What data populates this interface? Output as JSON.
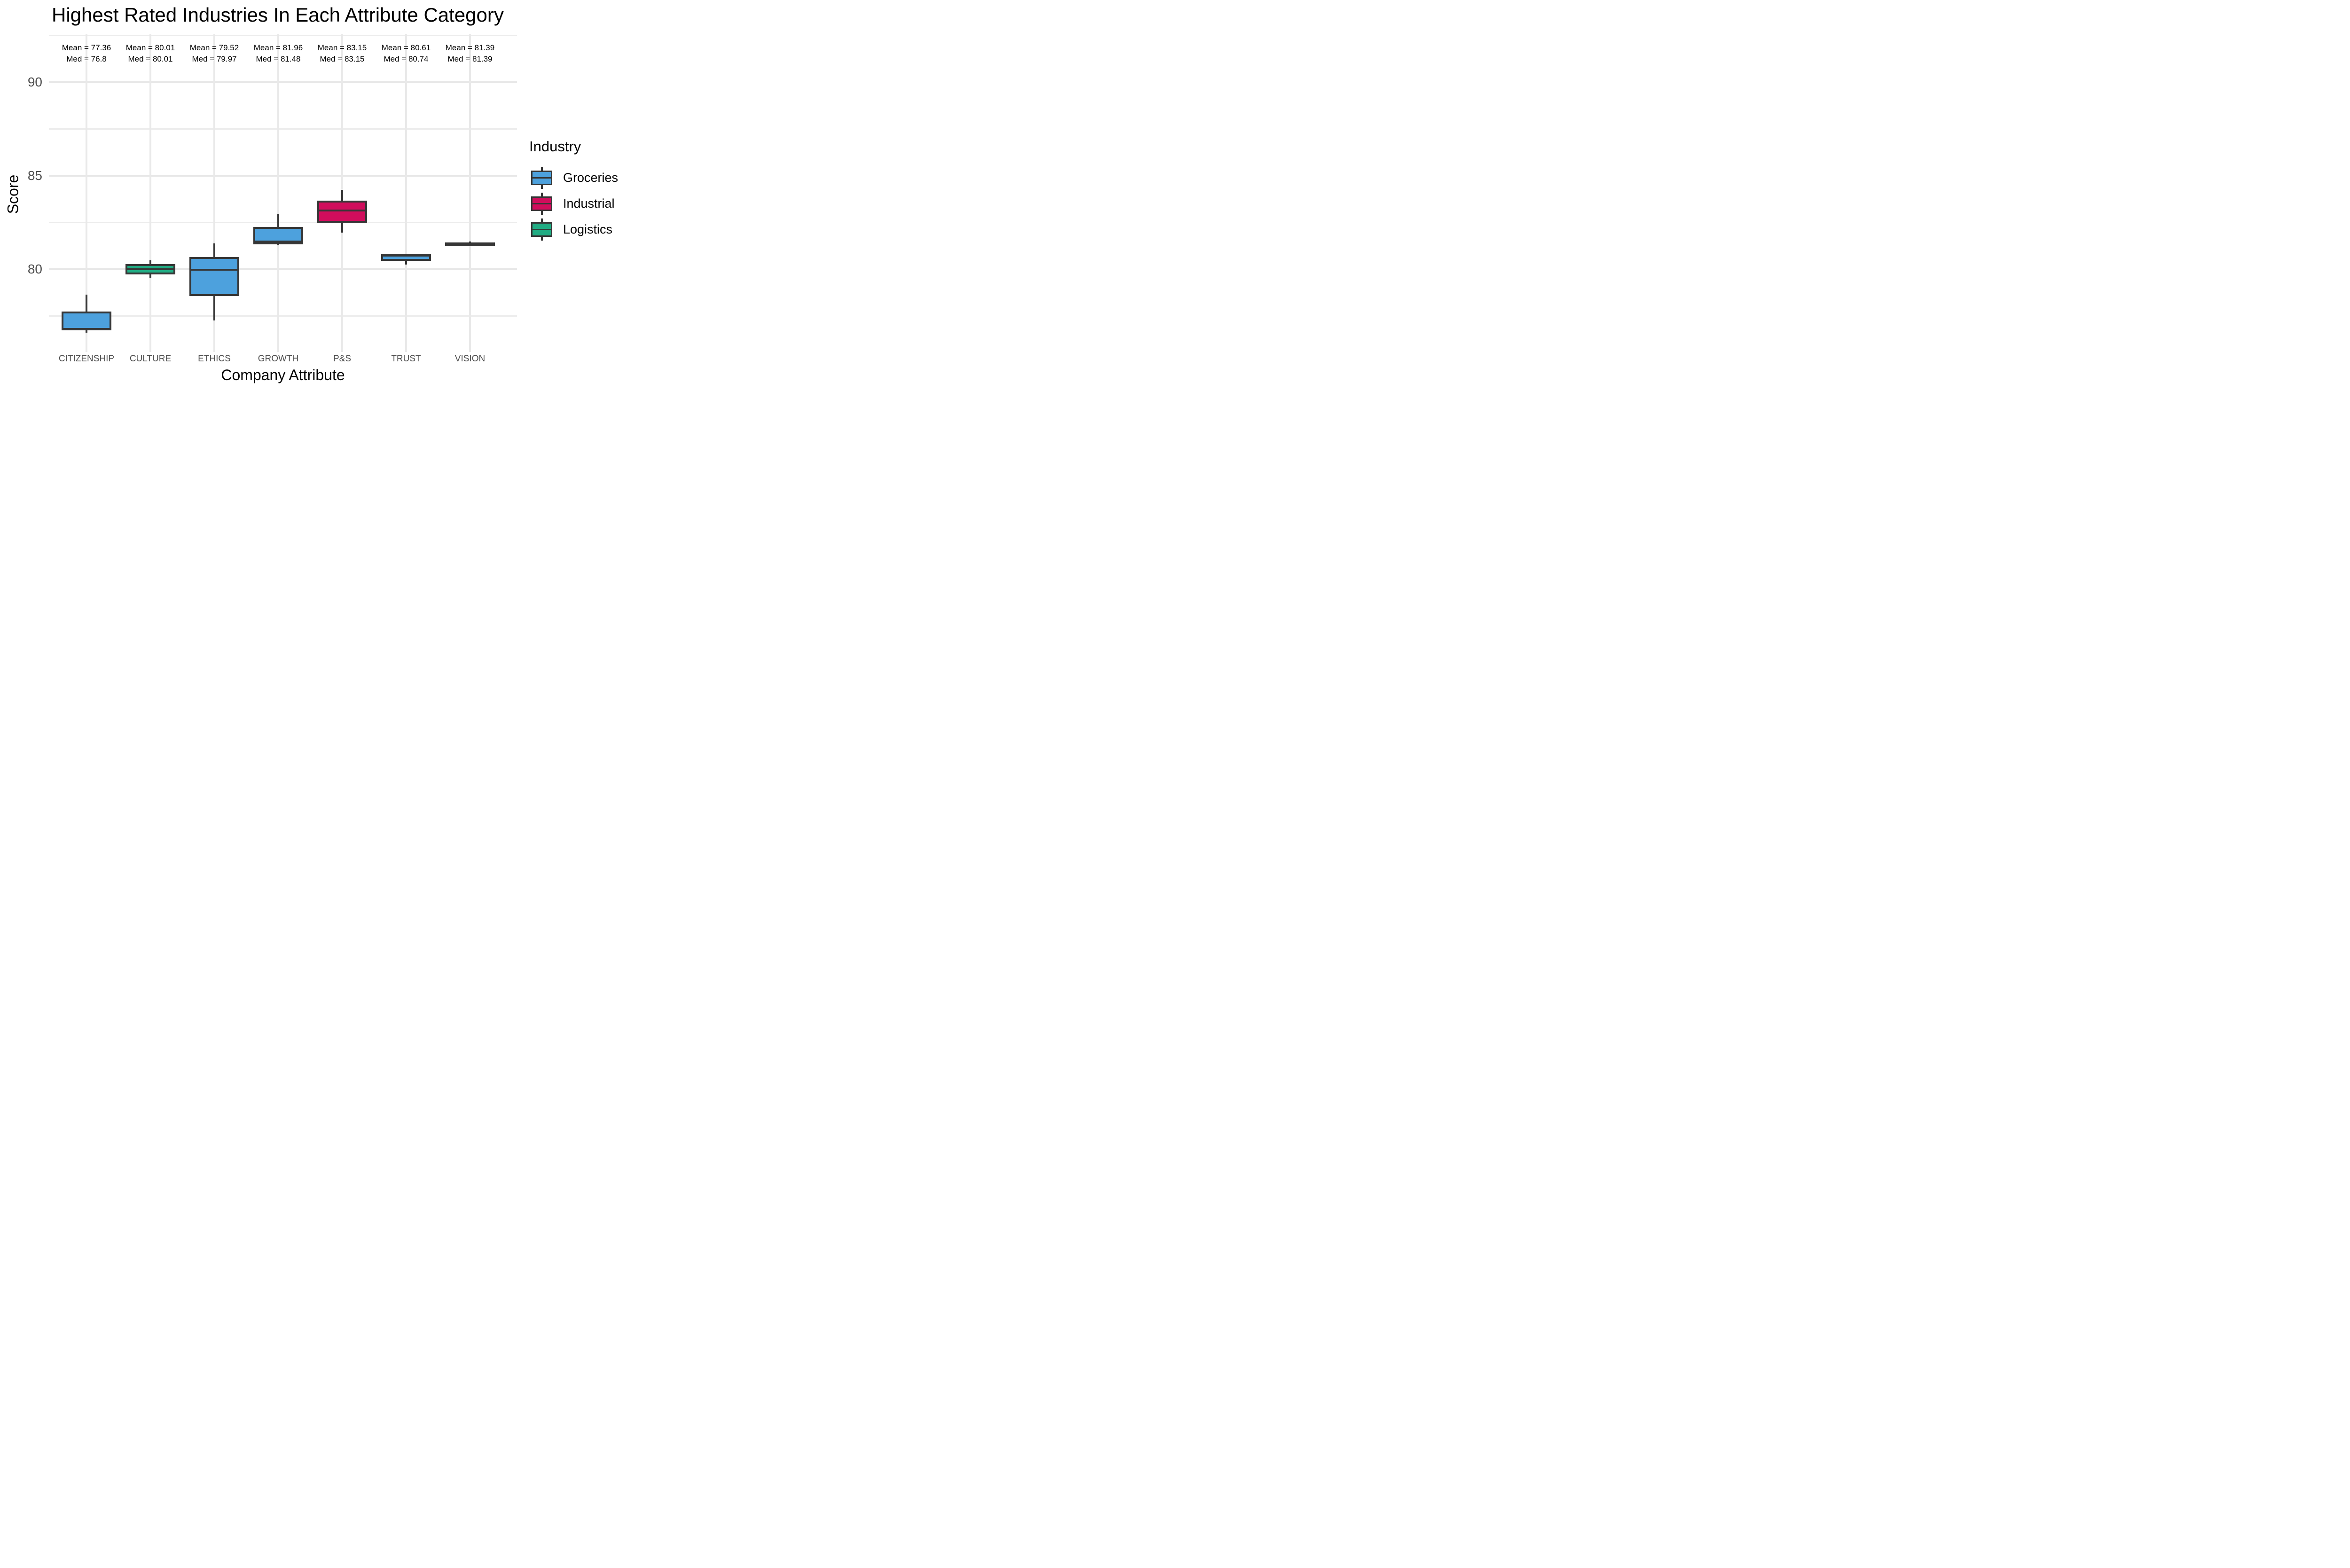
{
  "title": "Highest Rated Industries In Each Attribute Category",
  "axes": {
    "x_title": "Company Attribute",
    "y_title": "Score",
    "y_tick_labels": [
      "90",
      "85",
      "80"
    ]
  },
  "legend": {
    "title": "Industry",
    "entries": [
      {
        "label": "Groceries",
        "color": "#4da1dd"
      },
      {
        "label": "Industrial",
        "color": "#d00d5c"
      },
      {
        "label": "Logistics",
        "color": "#21ac83"
      }
    ]
  },
  "chart_data": {
    "type": "boxplot",
    "title": "Highest Rated Industries In Each Attribute Category",
    "xlabel": "Company Attribute",
    "ylabel": "Score",
    "ylim": [
      75.6,
      92.7
    ],
    "y_major_ticks": [
      80,
      85,
      90
    ],
    "y_minor_gridlines": [
      77.5,
      82.5,
      87.5,
      92.5
    ],
    "grid": "on",
    "legend_position": "right",
    "categories": [
      "CITIZENSHIP",
      "CULTURE",
      "ETHICS",
      "GROWTH",
      "P&S",
      "TRUST",
      "VISION"
    ],
    "series": [
      {
        "category": "CITIZENSHIP",
        "industry": "Groceries",
        "color": "#4da1dd",
        "min": 76.62,
        "q1": 76.74,
        "median": 76.8,
        "q3": 77.74,
        "max": 78.64,
        "mean": 77.36,
        "mean_label": "Mean = 77.36",
        "med_label": "Med = 76.8"
      },
      {
        "category": "CULTURE",
        "industry": "Logistics",
        "color": "#21ac83",
        "min": 79.55,
        "q1": 79.73,
        "median": 80.01,
        "q3": 80.28,
        "max": 80.47,
        "mean": 80.01,
        "mean_label": "Mean = 80.01",
        "med_label": "Med = 80.01"
      },
      {
        "category": "ETHICS",
        "industry": "Groceries",
        "color": "#4da1dd",
        "min": 77.25,
        "q1": 78.57,
        "median": 79.97,
        "q3": 80.65,
        "max": 81.37,
        "mean": 79.52,
        "mean_label": "Mean = 79.52",
        "med_label": "Med = 79.97"
      },
      {
        "category": "GROWTH",
        "industry": "Groceries",
        "color": "#4da1dd",
        "min": 81.27,
        "q1": 81.32,
        "median": 81.48,
        "q3": 82.26,
        "max": 82.93,
        "mean": 81.96,
        "mean_label": "Mean = 81.96",
        "med_label": "Med = 81.48"
      },
      {
        "category": "P&S",
        "industry": "Industrial",
        "color": "#d00d5c",
        "min": 81.95,
        "q1": 82.49,
        "median": 83.15,
        "q3": 83.67,
        "max": 84.25,
        "mean": 83.15,
        "mean_label": "Mean = 83.15",
        "med_label": "Med = 83.15"
      },
      {
        "category": "TRUST",
        "industry": "Groceries",
        "color": "#4da1dd",
        "min": 80.26,
        "q1": 80.45,
        "median": 80.74,
        "q3": 80.84,
        "max": 80.84,
        "mean": 80.61,
        "mean_label": "Mean = 80.61",
        "med_label": "Med = 80.74"
      },
      {
        "category": "VISION",
        "industry": "Groceries",
        "color": "#4da1dd",
        "min": 81.3,
        "q1": 81.36,
        "median": 81.39,
        "q3": 81.42,
        "max": 81.48,
        "mean": 81.39,
        "mean_label": "Mean = 81.39",
        "med_label": "Med = 81.39"
      }
    ],
    "colors": {
      "box_border": "#363636",
      "gridline_major": "#e7e7e7",
      "gridline_minor": "#ececec",
      "tick_text": "#4d4d4d"
    }
  }
}
